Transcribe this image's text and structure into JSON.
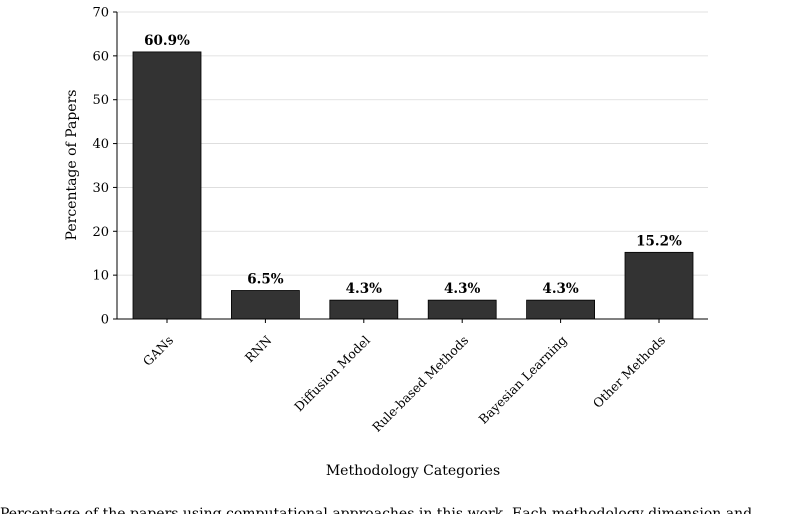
{
  "chart_data": {
    "type": "bar",
    "categories": [
      "GANs",
      "RNN",
      "Diffusion Model",
      "Rule-based Methods",
      "Bayesian Learning",
      "Other Methods"
    ],
    "values": [
      60.9,
      6.5,
      4.3,
      4.3,
      4.3,
      15.2
    ],
    "data_labels": [
      "60.9%",
      "6.5%",
      "4.3%",
      "4.3%",
      "4.3%",
      "15.2%"
    ],
    "ylim": [
      0,
      70
    ],
    "yticks": [
      0,
      10,
      20,
      30,
      40,
      50,
      60,
      70
    ],
    "ylabel": "Percentage of Papers",
    "xlabel": "Methodology Categories",
    "grid": true,
    "bar_color": "#333333",
    "grid_color": "#d9d9d9"
  },
  "caption": "Percentage of the papers using computational approaches in this work. Each methodology dimension and"
}
